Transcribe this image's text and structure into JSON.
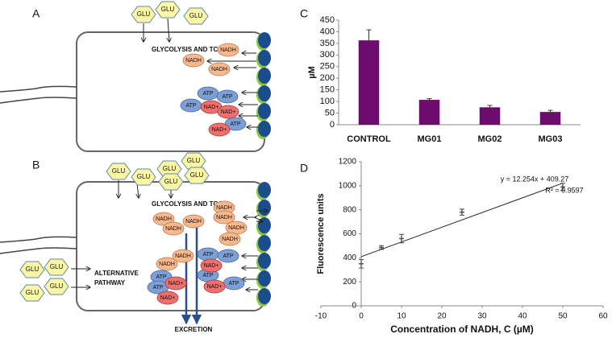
{
  "panel_labels": [
    "A",
    "B",
    "C",
    "D"
  ],
  "diagram_a": {
    "glu": [
      "GLU",
      "GLU",
      "GLU"
    ],
    "process": "GLYCOLYSIS AND TCA",
    "nadh": [
      "NADH",
      "NADH",
      "NADH"
    ],
    "atp": [
      "ATP",
      "ATP",
      "ATP",
      "ATP"
    ],
    "nad": [
      "NAD+",
      "NAD+",
      "NAD+"
    ]
  },
  "diagram_b": {
    "glu_top": [
      "GLU",
      "GLU",
      "GLU",
      "GLU",
      "GLU",
      "GLU"
    ],
    "glu_side": [
      "GLU",
      "GLU",
      "GLU",
      "GLU"
    ],
    "process": "GLYCOLYSIS AND TCA",
    "alternative": [
      "ALTERNATIVE",
      "PATHWAY"
    ],
    "nadh": [
      "NADH",
      "NADH",
      "NADH",
      "NADH",
      "NADH",
      "NADH",
      "NADH",
      "NADH",
      "NADH"
    ],
    "atp": [
      "ATP",
      "ATP",
      "ATP",
      "ATP",
      "ATP",
      "ATP"
    ],
    "nad": [
      "NAD+",
      "NAD+",
      "NAD+",
      "NAD+"
    ],
    "excretion": "EXCRETION"
  },
  "chart_data": [
    {
      "type": "bar",
      "categories": [
        "CONTROL",
        "MG01",
        "MG02",
        "MG03"
      ],
      "values": [
        363,
        107,
        75,
        55
      ],
      "errors": [
        45,
        5,
        8,
        7
      ],
      "ylim": [
        0,
        450
      ],
      "yticks": [
        0,
        50,
        100,
        150,
        200,
        250,
        300,
        350,
        400,
        450
      ],
      "ylabel": "µM",
      "color": "#6e0b6e"
    },
    {
      "type": "scatter",
      "x": [
        0,
        5,
        10,
        25,
        50
      ],
      "values": [
        350,
        485,
        560,
        780,
        990
      ],
      "errors": [
        35,
        15,
        35,
        25,
        30
      ],
      "xlim": [
        -10,
        60
      ],
      "xticks": [
        -10,
        0,
        10,
        20,
        30,
        40,
        50,
        60
      ],
      "ylim": [
        0,
        1200
      ],
      "yticks": [
        0,
        200,
        400,
        600,
        800,
        1000,
        1200
      ],
      "xlabel": "Concentration of NADH, C (µM)",
      "ylabel": "Fluorescence units",
      "annotations": [
        "y = 12.254x + 409.27",
        "R² = 0.9597"
      ],
      "trendline": {
        "x": [
          0,
          50
        ],
        "y": [
          409.27,
          1022
        ]
      },
      "color": "#555555"
    }
  ]
}
